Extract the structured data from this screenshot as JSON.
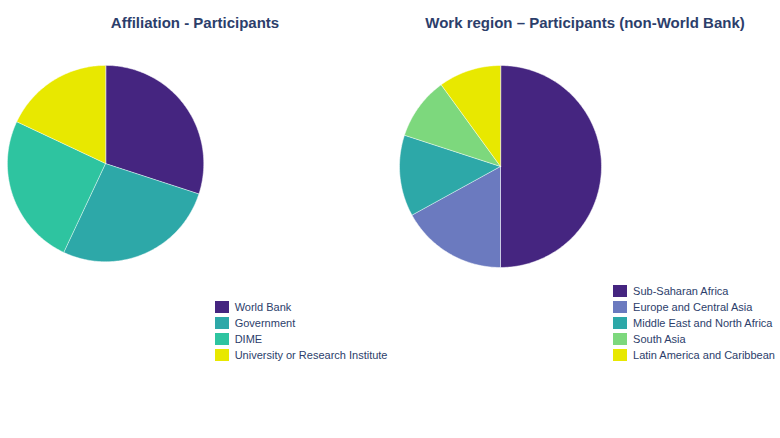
{
  "chart_data": [
    {
      "type": "pie",
      "title": "Affiliation - Participants",
      "categories": [
        "World Bank",
        "Government",
        "DIME",
        "University or Research Institute"
      ],
      "values": [
        30,
        27,
        25,
        18
      ],
      "colors": [
        "#452580",
        "#2da8a8",
        "#2ec4a0",
        "#e8e800"
      ],
      "legend": "lower right"
    },
    {
      "type": "pie",
      "title": "Work region – Participants (non-World Bank)",
      "categories": [
        "Sub-Saharan Africa",
        "Europe and Central Asia",
        "Middle East and North Africa",
        "South Asia",
        "Latin America and Caribbean"
      ],
      "values": [
        50,
        17,
        13,
        10,
        10
      ],
      "colors": [
        "#452580",
        "#6b7abf",
        "#2da8a8",
        "#7dd87d",
        "#e8e800"
      ],
      "legend": "lower right"
    }
  ]
}
